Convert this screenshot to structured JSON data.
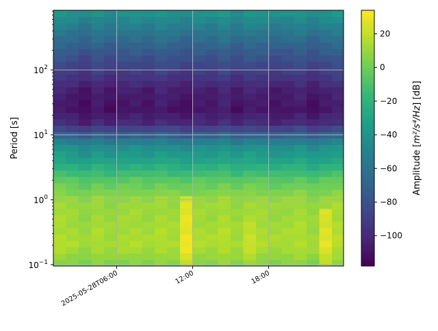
{
  "chart_data": {
    "type": "heatmap",
    "title": "",
    "ylabel": "Period [s]",
    "xlabel": "",
    "y_scale": "log",
    "ylim": [
      0.095,
      830
    ],
    "xlim": [
      "2025-05-28T01:00:00",
      "2025-05-28T23:55:00"
    ],
    "grid": true,
    "x_ticks": [
      {
        "value": "2025-05-28T06:00:00",
        "label": "2025-05-28T06:00"
      },
      {
        "value": "2025-05-28T12:00:00",
        "label": "12:00"
      },
      {
        "value": "2025-05-28T18:00:00",
        "label": "18:00"
      }
    ],
    "y_ticks": [
      {
        "value": 0.1,
        "label": "10",
        "exp": "−1"
      },
      {
        "value": 1,
        "label": "10",
        "exp": "0"
      },
      {
        "value": 10,
        "label": "10",
        "exp": "1"
      },
      {
        "value": 100,
        "label": "10",
        "exp": "2"
      }
    ],
    "colorbar": {
      "label_prefix": "Amplitude [",
      "label_unit": "m²/s⁴/Hz",
      "label_suffix": "] [dB]",
      "label_full": "Amplitude [m²/s⁴/Hz] [dB]",
      "colormap": "viridis",
      "range": [
        -118,
        34
      ],
      "ticks": [
        20,
        0,
        -20,
        -40,
        -60,
        -80,
        -100
      ]
    },
    "time_slices": [
      "2025-05-28T01:00:00",
      "2025-05-28T02:00:00",
      "2025-05-28T03:00:00",
      "2025-05-28T04:00:00",
      "2025-05-28T05:00:00",
      "2025-05-28T06:00:00",
      "2025-05-28T07:00:00",
      "2025-05-28T08:00:00",
      "2025-05-28T09:00:00",
      "2025-05-28T10:00:00",
      "2025-05-28T11:00:00",
      "2025-05-28T12:00:00",
      "2025-05-28T13:00:00",
      "2025-05-28T14:00:00",
      "2025-05-28T15:00:00",
      "2025-05-28T16:00:00",
      "2025-05-28T17:00:00",
      "2025-05-28T18:00:00",
      "2025-05-28T19:00:00",
      "2025-05-28T20:00:00",
      "2025-05-28T21:00:00",
      "2025-05-28T22:00:00",
      "2025-05-28T23:00:00"
    ],
    "period_profile": [
      {
        "period": 800,
        "db": -40
      },
      {
        "period": 500,
        "db": -52
      },
      {
        "period": 200,
        "db": -75
      },
      {
        "period": 100,
        "db": -90
      },
      {
        "period": 50,
        "db": -105
      },
      {
        "period": 25,
        "db": -110
      },
      {
        "period": 15,
        "db": -100
      },
      {
        "period": 10,
        "db": -70
      },
      {
        "period": 7,
        "db": -45
      },
      {
        "period": 4,
        "db": -30
      },
      {
        "period": 2,
        "db": -5
      },
      {
        "period": 1,
        "db": 10
      },
      {
        "period": 0.5,
        "db": 12
      },
      {
        "period": 0.2,
        "db": 15
      },
      {
        "period": 0.1,
        "db": 5
      }
    ],
    "time_offsets_db": [
      2,
      0,
      -3,
      1,
      -2,
      0,
      1,
      -1,
      2,
      0,
      -2,
      1,
      0,
      3,
      -1,
      2,
      1,
      -1,
      0,
      2,
      -2,
      1,
      3
    ],
    "highlights": [
      {
        "time": "2025-05-28T11:00:00",
        "period_max": 1.2,
        "db_boost": 18
      },
      {
        "time": "2025-05-28T16:00:00",
        "period_max": 0.5,
        "db_boost": 5
      },
      {
        "time": "2025-05-28T22:00:00",
        "period_max": 0.8,
        "db_boost": 12
      }
    ]
  }
}
